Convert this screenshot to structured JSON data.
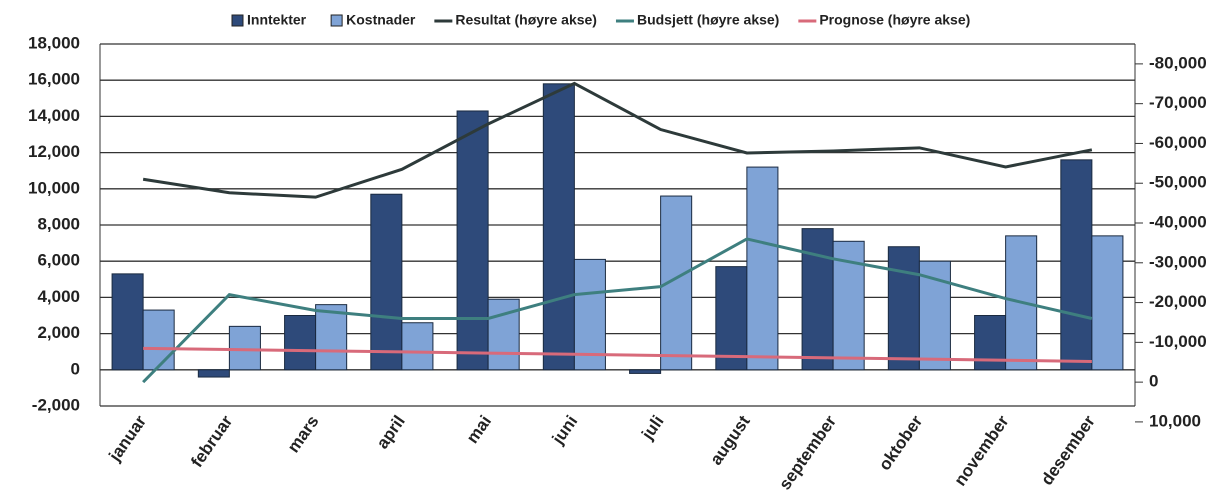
{
  "chart_data": {
    "type": "bar",
    "categories": [
      "januar",
      "februar",
      "mars",
      "april",
      "mai",
      "juni",
      "juli",
      "august",
      "september",
      "oktober",
      "november",
      "desember"
    ],
    "series": [
      {
        "name": "Inntekter",
        "type": "bar",
        "color": "#2e4a7a",
        "values": [
          5300,
          -400,
          3000,
          9700,
          14300,
          15800,
          -200,
          5700,
          7800,
          6800,
          3000,
          11600
        ]
      },
      {
        "name": "Kostnader",
        "type": "bar",
        "color": "#7fa3d6",
        "values": [
          3300,
          2400,
          3600,
          2600,
          3900,
          6100,
          9600,
          11200,
          7100,
          6000,
          7400,
          7400
        ]
      },
      {
        "name": "Resultat (høyre akse)",
        "type": "line",
        "axis": "y2",
        "color": "#2d3a3a",
        "values": [
          -51000,
          -47600,
          -46500,
          -53500,
          -64900,
          -75100,
          -63500,
          -57600,
          -58100,
          -58900,
          -54100,
          -58400
        ]
      },
      {
        "name": "Budsjett (høyre akse)",
        "type": "line",
        "axis": "y2",
        "color": "#3e7f7f",
        "values": [
          0,
          -22000,
          -18000,
          -16000,
          -16000,
          -22000,
          -24000,
          -36000,
          -31000,
          -27000,
          -21000,
          -16000
        ]
      },
      {
        "name": "Prognose (høyre akse)",
        "type": "line",
        "axis": "y2",
        "color": "#d86a7a",
        "values": [
          -8500,
          -8200,
          -7900,
          -7600,
          -7300,
          -7000,
          -6700,
          -6400,
          -6100,
          -5800,
          -5500,
          -5200
        ]
      }
    ],
    "ylim": [
      -2000,
      18000
    ],
    "yticks": [
      {
        "value": -2000,
        "label": "-2,000"
      },
      0,
      {
        "value": 2000,
        "label": "2,000"
      },
      {
        "value": 4000,
        "label": "4,000"
      },
      {
        "value": 6000,
        "label": "6,000"
      },
      {
        "value": 8000,
        "label": "8,000"
      },
      {
        "value": 10000,
        "label": "10,000"
      },
      {
        "value": 12000,
        "label": "12,000"
      },
      {
        "value": 14000,
        "label": "14,000"
      },
      {
        "value": 16000,
        "label": "16,000"
      },
      {
        "value": 18000,
        "label": "18,000"
      }
    ],
    "y2lim": [
      6000,
      -85000
    ],
    "y2ticks": [
      {
        "value": 10000,
        "label": "10,000"
      },
      0,
      {
        "value": -10000,
        "label": "-10,000"
      },
      {
        "value": -20000,
        "label": "-20,000"
      },
      {
        "value": -30000,
        "label": "-30,000"
      },
      {
        "value": -40000,
        "label": "-40,000"
      },
      {
        "value": -50000,
        "label": "-50,000"
      },
      {
        "value": -60000,
        "label": "-60,000"
      },
      {
        "value": -70000,
        "label": "-70,000"
      },
      {
        "value": -80000,
        "label": "-80,000"
      }
    ],
    "grid": true
  }
}
